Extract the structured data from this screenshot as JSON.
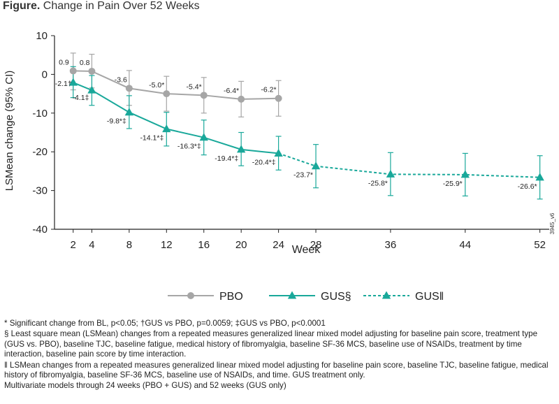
{
  "title": {
    "bold": "Figure.",
    "rest": "Change in Pain Over 52 Weeks"
  },
  "side_label": "3945_v6",
  "chart_data": {
    "type": "line",
    "xlabel": "Week",
    "ylabel": "LSMean change (95% CI)",
    "xlim": [
      0,
      53
    ],
    "ylim": [
      -40,
      10
    ],
    "xticks": [
      2,
      4,
      8,
      12,
      16,
      20,
      24,
      28,
      36,
      44,
      52
    ],
    "yticks": [
      10,
      0,
      -10,
      -20,
      -30,
      -40
    ],
    "grid": false,
    "legend_position": "bottom",
    "colors": {
      "pbo": "#a6a6a6",
      "gus": "#19a89a"
    },
    "series": [
      {
        "name": "PBO",
        "marker": "circle",
        "dashed": false,
        "label_side": "above",
        "points": [
          {
            "x": 2,
            "y": 0.9,
            "lo": -4.0,
            "hi": 5.5,
            "label": "0.9"
          },
          {
            "x": 4,
            "y": 0.8,
            "lo": -3.5,
            "hi": 5.2,
            "label": "0.8"
          },
          {
            "x": 8,
            "y": -3.6,
            "lo": -8.0,
            "hi": 1.0,
            "label": "-3.6"
          },
          {
            "x": 12,
            "y": -5.0,
            "lo": -9.5,
            "hi": -0.5,
            "label": "-5.0*"
          },
          {
            "x": 16,
            "y": -5.4,
            "lo": -10.0,
            "hi": -0.8,
            "label": "-5.4*"
          },
          {
            "x": 20,
            "y": -6.4,
            "lo": -11.0,
            "hi": -1.8,
            "label": "-6.4*"
          },
          {
            "x": 24,
            "y": -6.2,
            "lo": -10.8,
            "hi": -1.6,
            "label": "-6.2*"
          }
        ]
      },
      {
        "name": "GUS§",
        "marker": "triangle",
        "dashed": false,
        "label_side": "below",
        "points": [
          {
            "x": 2,
            "y": -2.1,
            "lo": -6.0,
            "hi": 2.0,
            "label": "-2.1†"
          },
          {
            "x": 4,
            "y": -4.1,
            "lo": -8.0,
            "hi": -0.3,
            "label": "-4.1‡"
          },
          {
            "x": 8,
            "y": -9.8,
            "lo": -14.0,
            "hi": -5.5,
            "label": "-9.8*‡"
          },
          {
            "x": 12,
            "y": -14.1,
            "lo": -18.5,
            "hi": -9.8,
            "label": "-14.1*‡"
          },
          {
            "x": 16,
            "y": -16.3,
            "lo": -20.8,
            "hi": -11.8,
            "label": "-16.3*‡"
          },
          {
            "x": 20,
            "y": -19.4,
            "lo": -23.6,
            "hi": -15.0,
            "label": "-19.4*‡"
          },
          {
            "x": 24,
            "y": -20.4,
            "lo": -24.7,
            "hi": -16.0,
            "label": "-20.4*‡"
          }
        ]
      },
      {
        "name": "GUS‖",
        "marker": "triangle",
        "dashed": true,
        "label_side": "below",
        "points": [
          {
            "x": 24,
            "y": -20.4,
            "lo": null,
            "hi": null,
            "label": ""
          },
          {
            "x": 28,
            "y": -23.7,
            "lo": -29.3,
            "hi": -18.1,
            "label": "-23.7*"
          },
          {
            "x": 36,
            "y": -25.8,
            "lo": -31.3,
            "hi": -20.2,
            "label": "-25.8*"
          },
          {
            "x": 44,
            "y": -25.9,
            "lo": -31.4,
            "hi": -20.4,
            "label": "-25.9*"
          },
          {
            "x": 52,
            "y": -26.6,
            "lo": -32.2,
            "hi": -21.0,
            "label": "-26.6*"
          }
        ]
      }
    ]
  },
  "footnotes": [
    "* Significant change from BL, p<0.05; †GUS vs PBO, p=0.0059; ‡GUS vs PBO, p<0.0001",
    "§ Least square mean (LSMean) changes from a repeated measures generalized linear mixed model adjusting for baseline pain score, treatment type (GUS vs. PBO), baseline TJC, baseline fatigue, medical history of fibromyalgia, baseline SF-36 MCS, baseline use of NSAIDs, treatment by time interaction, baseline pain score by time interaction.",
    "‖ LSMean changes from a repeated measures generalized linear mixed model adjusting for baseline pain score, baseline TJC, baseline fatigue, medical history of fibromyalgia, baseline SF-36 MCS, baseline use of NSAIDs, and time. GUS treatment only.",
    "Multivariate models through 24 weeks (PBO + GUS) and 52 weeks (GUS only)"
  ]
}
